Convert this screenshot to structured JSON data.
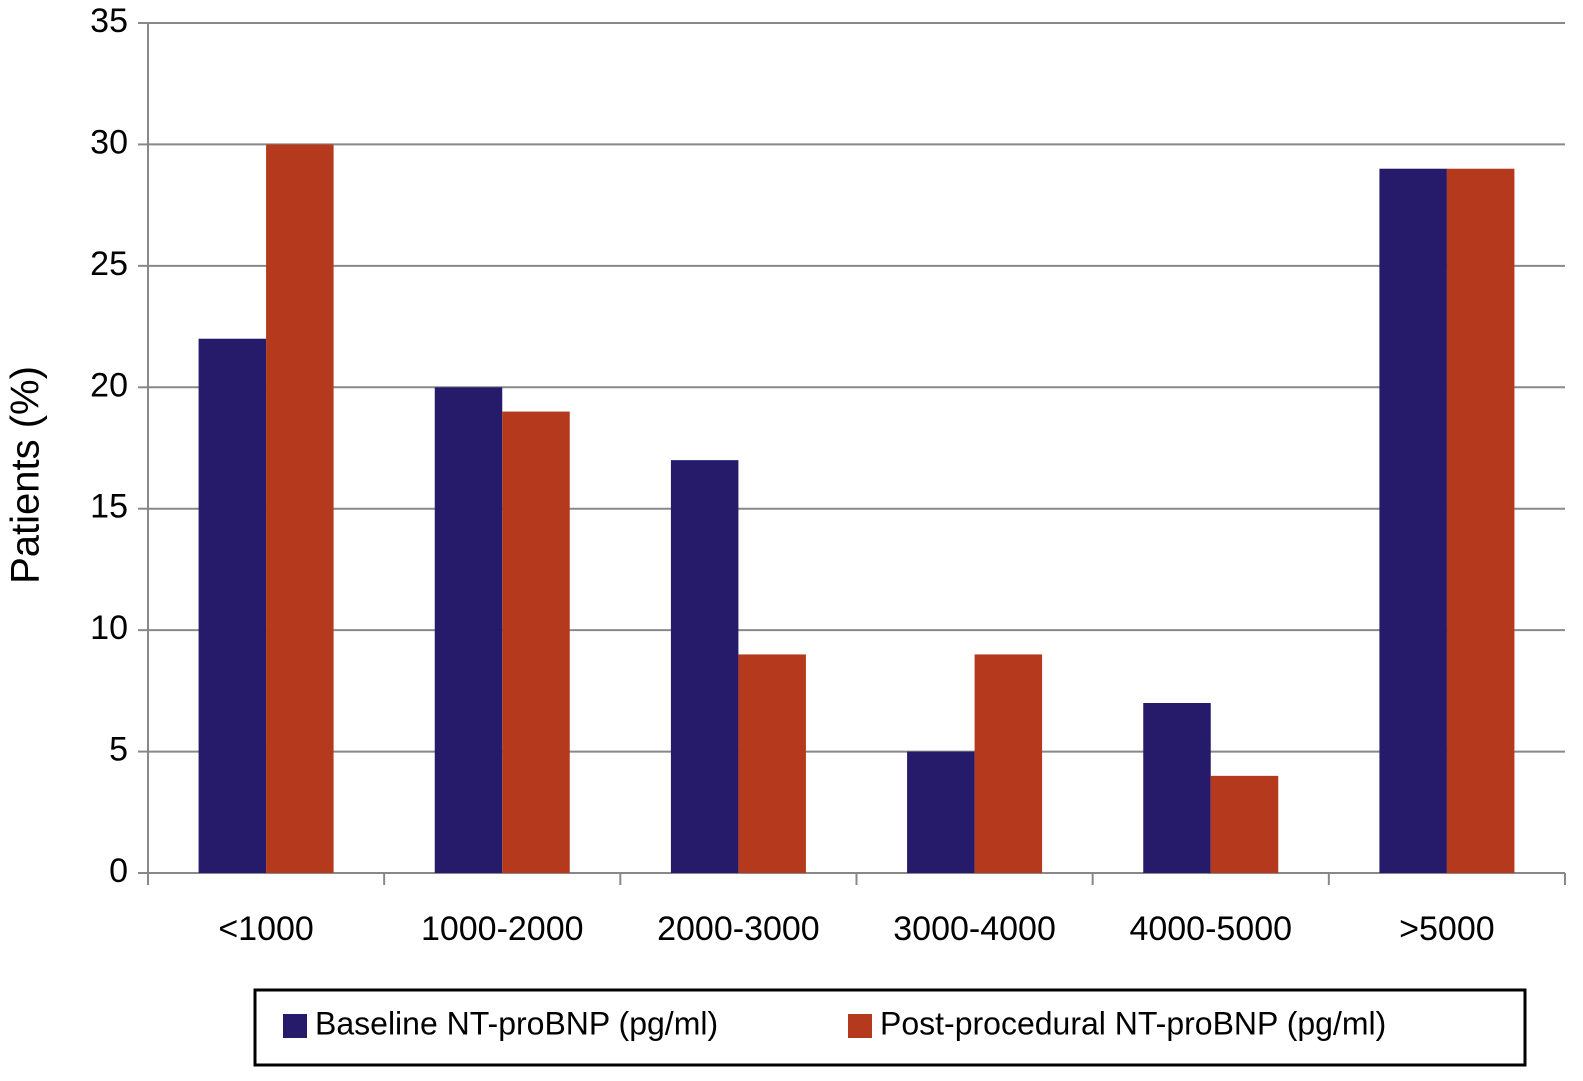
{
  "chart_data": {
    "type": "bar",
    "y_label": "Patients (%)",
    "categories": [
      "<1000",
      "1000-2000",
      "2000-3000",
      "3000-4000",
      "4000-5000",
      ">5000"
    ],
    "series": [
      {
        "name": "Baseline NT-proBNP (pg/ml)",
        "color": "#261b6b",
        "values": [
          22,
          20,
          17,
          5,
          7,
          29
        ]
      },
      {
        "name": "Post-procedural NT-proBNP (pg/ml)",
        "color": "#b5391d",
        "values": [
          30,
          19,
          9,
          9,
          4,
          29
        ]
      }
    ],
    "ylim": [
      0,
      35
    ],
    "yticks": [
      0,
      5,
      10,
      15,
      20,
      25,
      30,
      35
    ],
    "grid": true,
    "legend": "bottom"
  }
}
